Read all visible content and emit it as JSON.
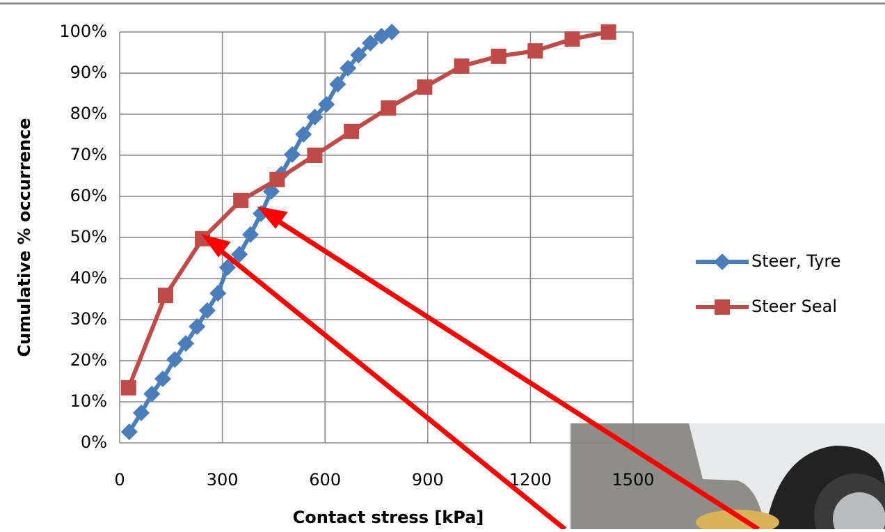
{
  "chart_data": {
    "type": "line",
    "x_label": "Contact stress [kPa]",
    "y_label": "Cumulative % occurrence",
    "xlim": [
      0,
      1500
    ],
    "xticks": [
      0,
      300,
      600,
      900,
      1200,
      1500
    ],
    "ylim": [
      0,
      100
    ],
    "yticks": [
      {
        "value": 0,
        "label": "0%"
      },
      {
        "value": 10,
        "label": "10%"
      },
      {
        "value": 20,
        "label": "20%"
      },
      {
        "value": 30,
        "label": "30%"
      },
      {
        "value": 40,
        "label": "40%"
      },
      {
        "value": 50,
        "label": "50%"
      },
      {
        "value": 60,
        "label": "60%"
      },
      {
        "value": 70,
        "label": "70%"
      },
      {
        "value": 80,
        "label": "80%"
      },
      {
        "value": 90,
        "label": "90%"
      },
      {
        "value": 100,
        "label": "100%"
      }
    ],
    "grid": true,
    "legend": "right",
    "series": [
      {
        "name": "Steer, Tyre",
        "color": "#4a7ebb",
        "marker": "diamond",
        "x": [
          28,
          63,
          94,
          126,
          161,
          193,
          226,
          256,
          287,
          315,
          350,
          382,
          413,
          443,
          472,
          504,
          537,
          570,
          604,
          637,
          667,
          698,
          732,
          765,
          795
        ],
        "values": [
          2.7,
          7.3,
          11.9,
          15.6,
          20.3,
          24.2,
          28.3,
          32.2,
          36.4,
          42.7,
          45.9,
          50.7,
          55.8,
          61.2,
          65.4,
          70.2,
          75.1,
          79.3,
          82.4,
          87.3,
          91.2,
          94.4,
          97.3,
          99,
          100
        ]
      },
      {
        "name": "Steer Seal",
        "color": "#be4b48",
        "marker": "square",
        "x": [
          26,
          134,
          242,
          354,
          460,
          570,
          677,
          785,
          891,
          999,
          1107,
          1214,
          1322,
          1428
        ],
        "values": [
          13.4,
          35.9,
          49.7,
          59,
          64.1,
          70,
          75.8,
          81.5,
          86.6,
          91.7,
          94.1,
          95.4,
          98.3,
          100
        ]
      }
    ]
  }
}
